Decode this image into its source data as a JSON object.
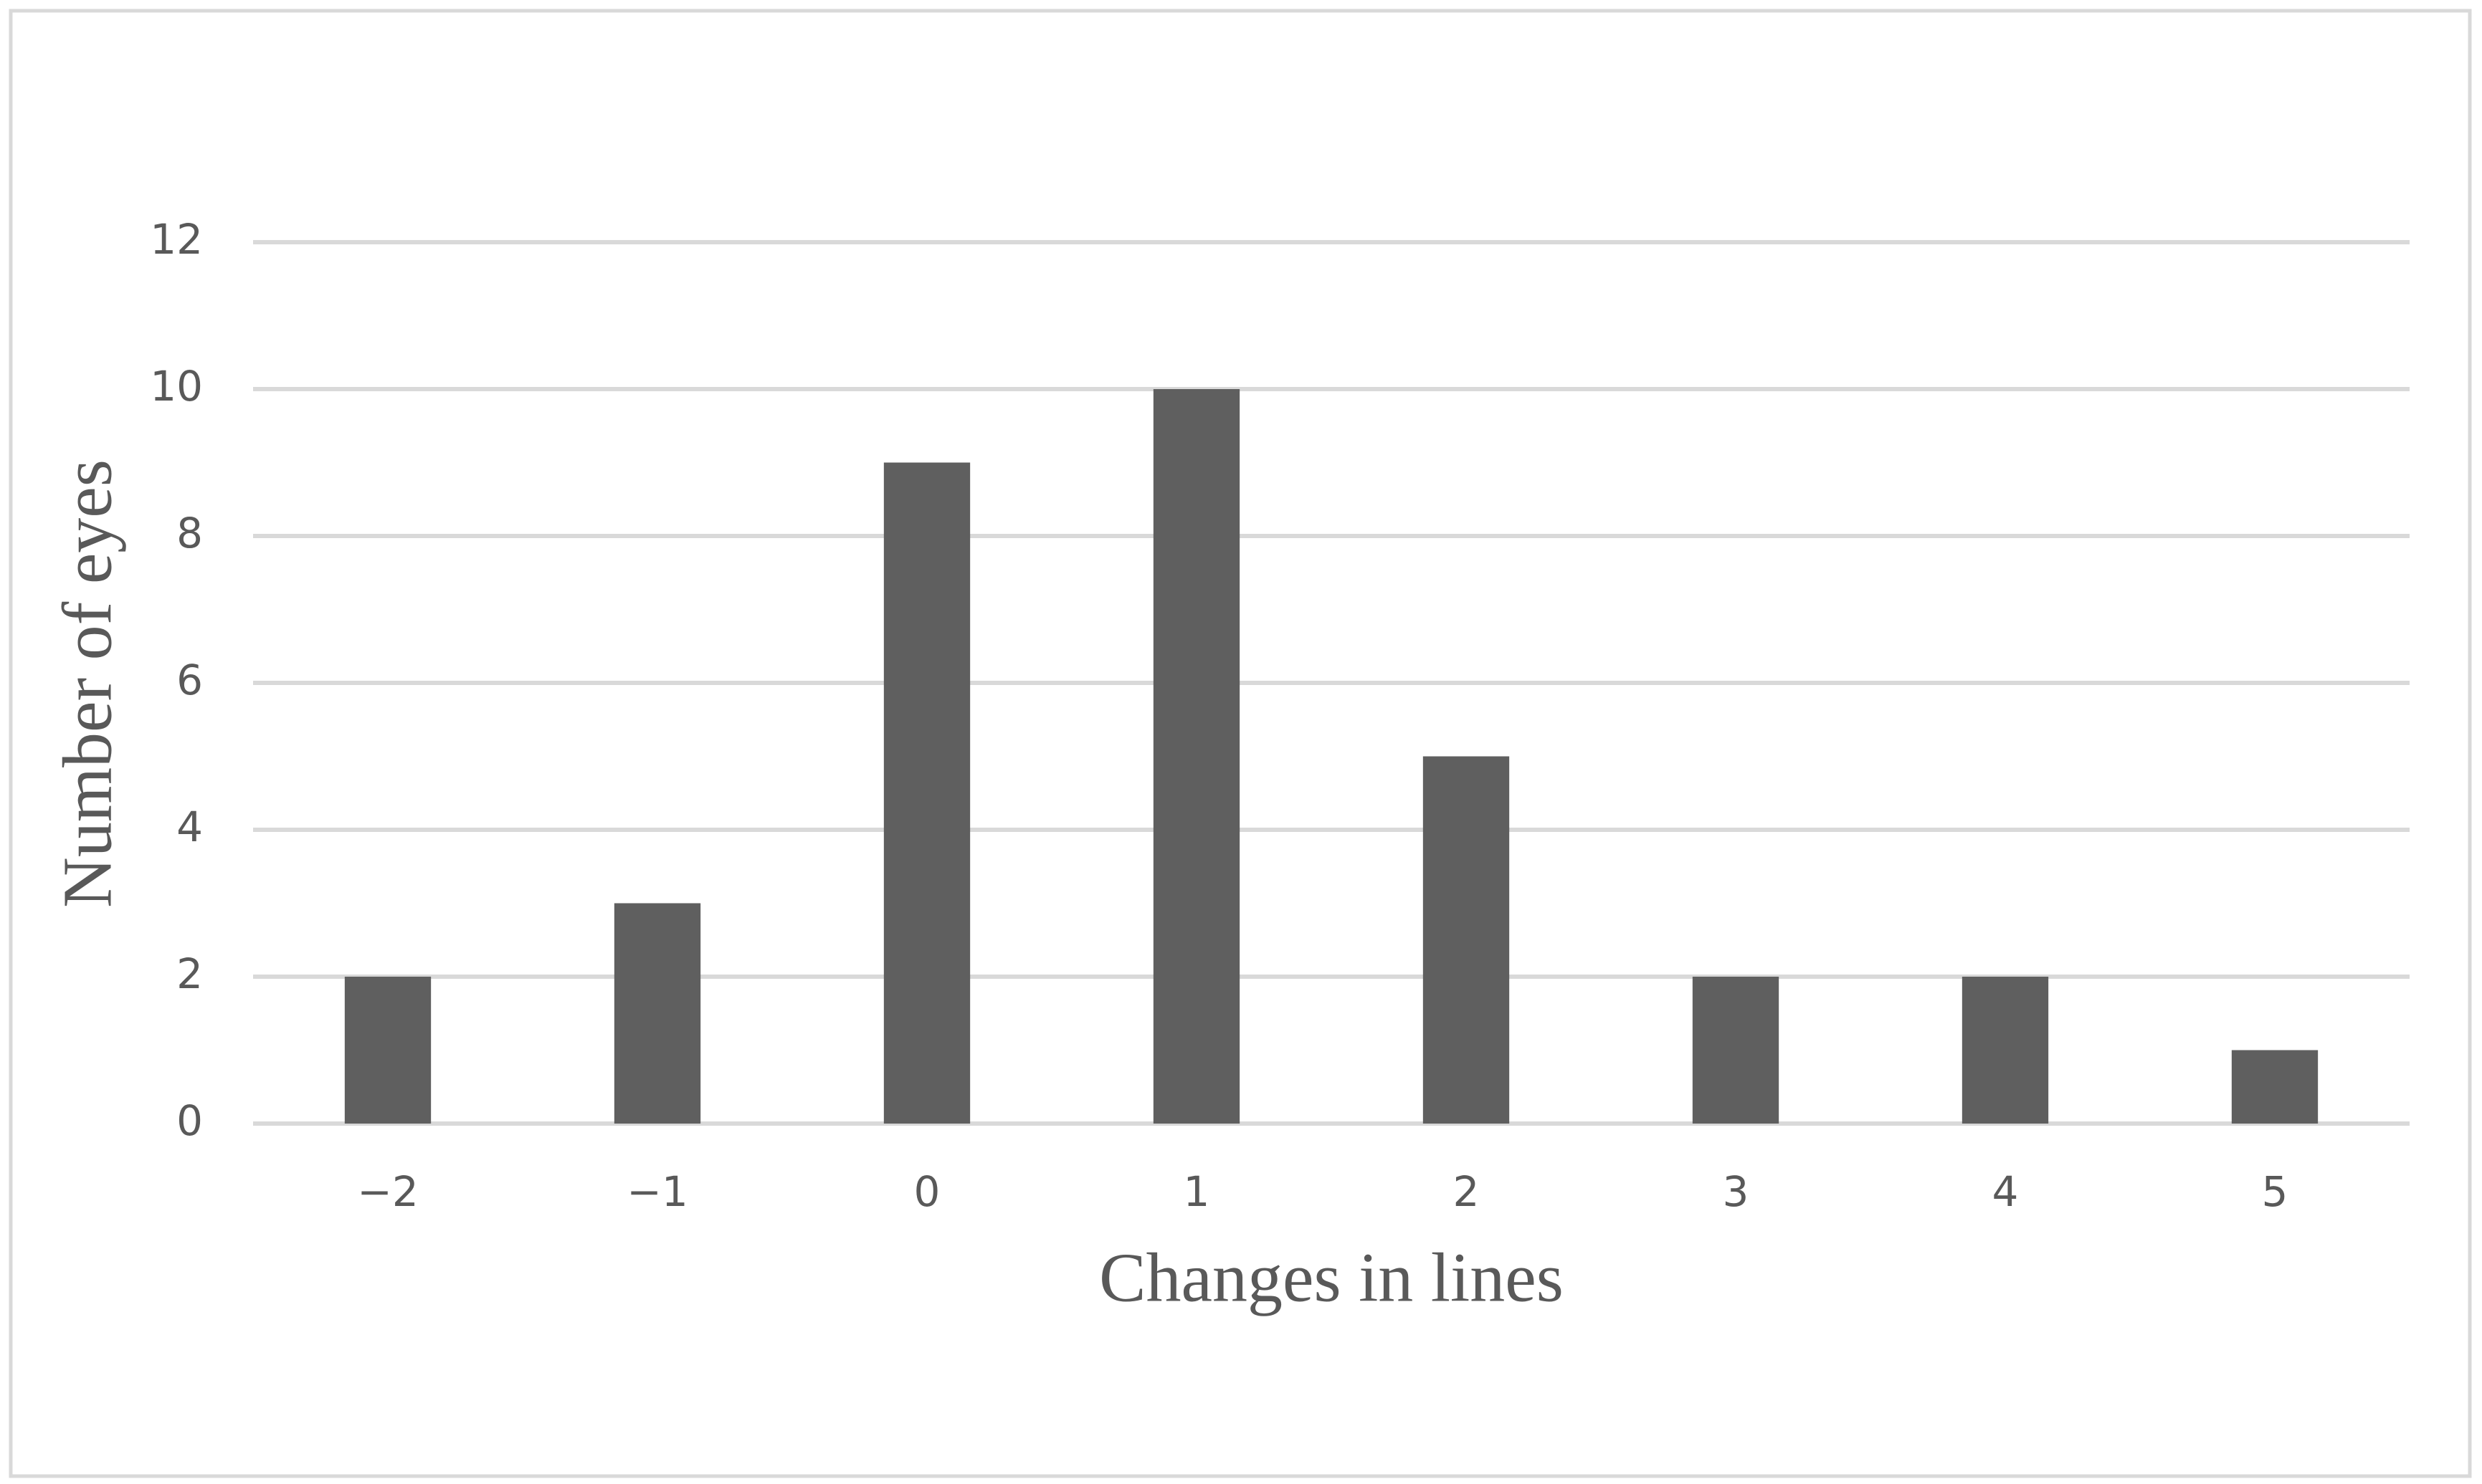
{
  "chart_data": {
    "type": "bar",
    "x_label": "Changes in lines",
    "y_label": "Number of eyes",
    "categories": [
      "−2",
      "−1",
      "0",
      "1",
      "2",
      "3",
      "4",
      "5"
    ],
    "values": [
      2,
      3,
      9,
      10,
      5,
      2,
      2,
      1
    ],
    "color": "#5f5f5f",
    "ylim": [
      0,
      12
    ],
    "yticks": [
      0,
      2,
      4,
      6,
      8,
      10,
      12
    ],
    "grid": true
  }
}
